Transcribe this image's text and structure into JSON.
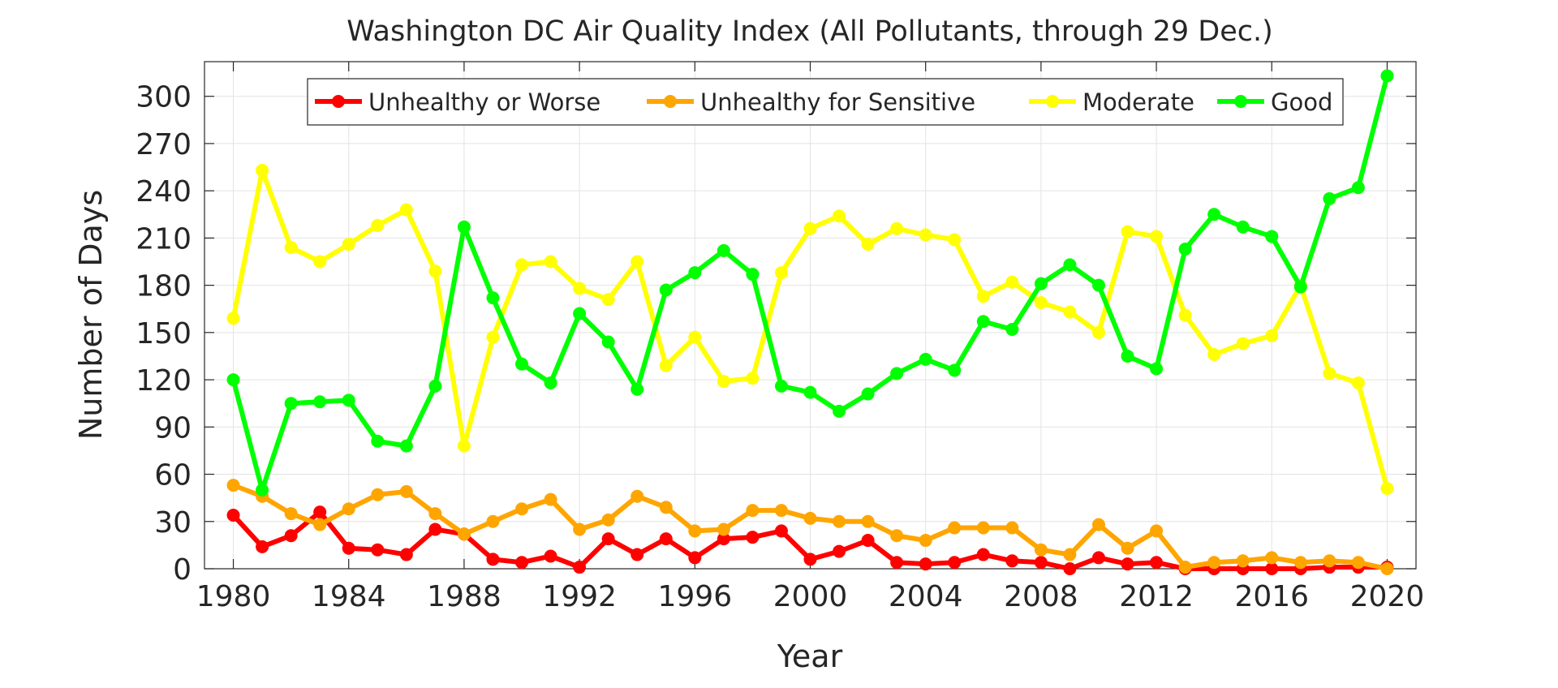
{
  "chart_data": {
    "type": "line",
    "title": "Washington DC Air Quality Index (All Pollutants, through 29 Dec.)",
    "xlabel": "Year",
    "ylabel": "Number of Days",
    "xlim": [
      1979,
      2021
    ],
    "ylim": [
      0,
      322
    ],
    "xticks": [
      1980,
      1984,
      1988,
      1992,
      1996,
      2000,
      2004,
      2008,
      2012,
      2016,
      2020
    ],
    "yticks": [
      0,
      30,
      60,
      90,
      120,
      150,
      180,
      210,
      240,
      270,
      300
    ],
    "grid": true,
    "legend_position": "top, horizontal",
    "x": [
      1980,
      1981,
      1982,
      1983,
      1984,
      1985,
      1986,
      1987,
      1988,
      1989,
      1990,
      1991,
      1992,
      1993,
      1994,
      1995,
      1996,
      1997,
      1998,
      1999,
      2000,
      2001,
      2002,
      2003,
      2004,
      2005,
      2006,
      2007,
      2008,
      2009,
      2010,
      2011,
      2012,
      2013,
      2014,
      2015,
      2016,
      2017,
      2018,
      2019,
      2020
    ],
    "series": [
      {
        "name": "Unhealthy or Worse",
        "color": "#ff0000",
        "values": [
          34,
          14,
          21,
          36,
          13,
          12,
          9,
          25,
          22,
          6,
          4,
          8,
          1,
          19,
          9,
          19,
          7,
          19,
          20,
          24,
          6,
          11,
          18,
          4,
          3,
          4,
          9,
          5,
          4,
          0,
          7,
          3,
          4,
          0,
          0,
          0,
          0,
          0,
          1,
          1,
          1
        ]
      },
      {
        "name": "Unhealthy for Sensitive",
        "color": "#ffa500",
        "values": [
          53,
          46,
          35,
          28,
          38,
          47,
          49,
          35,
          22,
          30,
          38,
          44,
          25,
          31,
          46,
          39,
          24,
          25,
          37,
          37,
          32,
          30,
          30,
          21,
          18,
          26,
          26,
          26,
          12,
          9,
          28,
          13,
          24,
          1,
          4,
          5,
          7,
          4,
          5,
          4,
          0
        ]
      },
      {
        "name": "Moderate",
        "color": "#ffff00",
        "values": [
          159,
          253,
          204,
          195,
          206,
          218,
          228,
          189,
          78,
          147,
          193,
          195,
          178,
          171,
          195,
          129,
          147,
          119,
          121,
          188,
          216,
          224,
          206,
          216,
          212,
          209,
          173,
          182,
          169,
          163,
          150,
          214,
          211,
          161,
          136,
          143,
          148,
          180,
          124,
          118,
          51
        ]
      },
      {
        "name": "Good",
        "color": "#00ff00",
        "values": [
          120,
          50,
          105,
          106,
          107,
          81,
          78,
          116,
          217,
          172,
          130,
          118,
          162,
          144,
          114,
          177,
          188,
          202,
          187,
          116,
          112,
          100,
          111,
          124,
          133,
          126,
          157,
          152,
          181,
          193,
          180,
          135,
          127,
          203,
          225,
          217,
          211,
          179,
          235,
          242,
          313
        ]
      }
    ]
  }
}
